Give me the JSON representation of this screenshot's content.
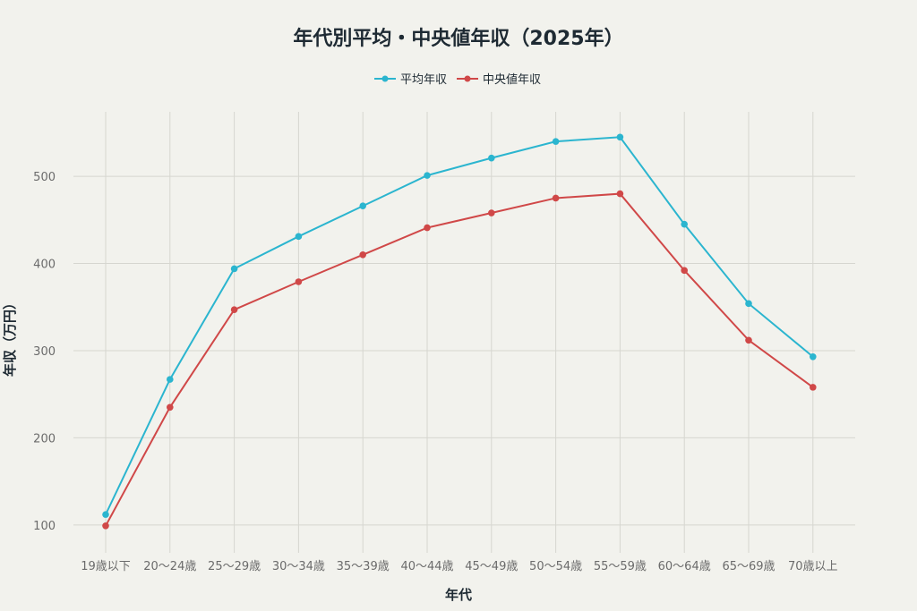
{
  "chart_data": {
    "type": "line",
    "title": "年代別平均・中央値年収（2025年）",
    "xlabel": "年代",
    "ylabel": "年収（万円）",
    "categories": [
      "19歳以下",
      "20〜24歳",
      "25〜29歳",
      "30〜34歳",
      "35〜39歳",
      "40〜44歳",
      "45〜49歳",
      "50〜54歳",
      "55〜59歳",
      "60〜64歳",
      "65〜69歳",
      "70歳以上"
    ],
    "series": [
      {
        "name": "平均年収",
        "color": "#2bb5cf",
        "values": [
          112,
          267,
          394,
          431,
          466,
          501,
          521,
          540,
          545,
          445,
          354,
          293
        ]
      },
      {
        "name": "中央値年収",
        "color": "#d04848",
        "values": [
          99,
          235,
          347,
          379,
          410,
          441,
          458,
          475,
          480,
          392,
          312,
          258
        ]
      }
    ],
    "yticks": [
      100,
      200,
      300,
      400,
      500
    ],
    "ylim": [
      68,
      574
    ],
    "grid": true,
    "legend_position": "top-center"
  }
}
